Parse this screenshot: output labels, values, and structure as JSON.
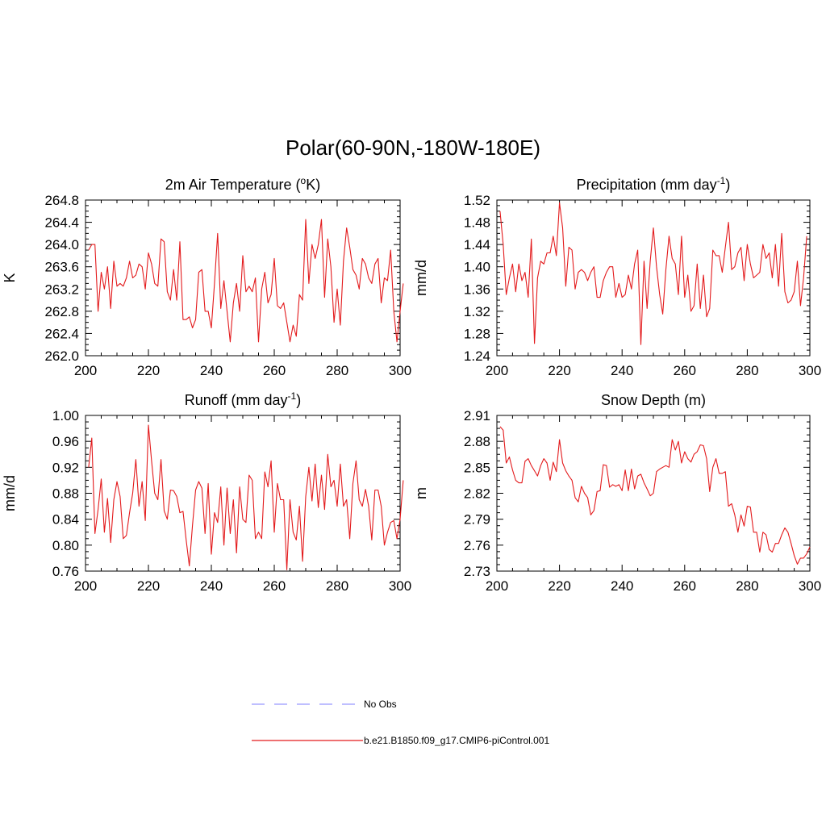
{
  "figure": {
    "title": "Polar(60-90N,-180W-180E)"
  },
  "colors": {
    "model": "#e31a1c",
    "obs": "#9999ff",
    "axis": "#000000"
  },
  "legend": {
    "items": [
      {
        "label": "No Obs",
        "style": "dashed",
        "color": "#9999ff"
      },
      {
        "label": "b.e21.B1850.f09_g17.CMIP6-piControl.001",
        "style": "solid",
        "color": "#e31a1c"
      }
    ]
  },
  "chart_data": [
    {
      "type": "line",
      "title": "2m Air Temperature (",
      "title_sup": "o",
      "title_post": "K)",
      "ylabel": "K",
      "xlim": [
        200,
        300
      ],
      "ylim": [
        262.0,
        264.8
      ],
      "yticks": [
        "262.0",
        "262.4",
        "262.8",
        "263.2",
        "263.6",
        "264.0",
        "264.4",
        "264.8"
      ],
      "xticks": [
        "200",
        "220",
        "240",
        "260",
        "280",
        "300"
      ],
      "x_start": 201,
      "values": [
        263.9,
        264.0,
        264.0,
        262.8,
        263.5,
        263.2,
        263.6,
        262.85,
        263.7,
        263.25,
        263.3,
        263.25,
        263.4,
        263.7,
        263.4,
        263.45,
        263.65,
        263.6,
        263.2,
        263.85,
        263.65,
        263.3,
        263.25,
        264.1,
        264.05,
        263.15,
        263.0,
        263.55,
        263.0,
        264.05,
        262.65,
        262.65,
        262.7,
        262.5,
        262.65,
        263.5,
        263.55,
        262.8,
        262.8,
        262.5,
        263.3,
        264.2,
        262.85,
        263.35,
        262.8,
        262.25,
        262.95,
        263.3,
        262.8,
        263.8,
        263.15,
        263.25,
        263.15,
        263.4,
        262.25,
        263.2,
        263.5,
        262.95,
        263.1,
        263.75,
        262.9,
        262.85,
        262.95,
        262.6,
        262.25,
        262.55,
        262.35,
        263.1,
        263.0,
        264.45,
        263.3,
        264.0,
        263.75,
        264.0,
        264.45,
        263.05,
        264.1,
        263.6,
        262.6,
        263.2,
        262.55,
        263.7,
        264.3,
        263.95,
        263.55,
        263.45,
        263.2,
        263.75,
        263.65,
        263.4,
        263.3,
        263.65,
        263.75,
        262.95,
        263.4,
        263.35,
        263.9,
        262.8,
        262.25,
        262.8,
        263.3
      ]
    },
    {
      "type": "line",
      "title": "Precipitation (mm day",
      "title_sup": "-1",
      "title_post": ")",
      "ylabel": "mm/d",
      "xlim": [
        200,
        300
      ],
      "ylim": [
        1.24,
        1.52
      ],
      "yticks": [
        "1.24",
        "1.28",
        "1.32",
        "1.36",
        "1.40",
        "1.44",
        "1.48",
        "1.52"
      ],
      "xticks": [
        "200",
        "220",
        "240",
        "260",
        "280",
        "300"
      ],
      "x_start": 201,
      "values": [
        1.5,
        1.44,
        1.35,
        1.38,
        1.405,
        1.355,
        1.405,
        1.375,
        1.39,
        1.345,
        1.45,
        1.262,
        1.38,
        1.41,
        1.405,
        1.425,
        1.425,
        1.455,
        1.42,
        1.515,
        1.47,
        1.365,
        1.435,
        1.43,
        1.36,
        1.39,
        1.395,
        1.39,
        1.375,
        1.39,
        1.4,
        1.345,
        1.345,
        1.375,
        1.39,
        1.4,
        1.4,
        1.345,
        1.37,
        1.345,
        1.35,
        1.385,
        1.36,
        1.405,
        1.43,
        1.26,
        1.41,
        1.325,
        1.41,
        1.47,
        1.4,
        1.35,
        1.315,
        1.395,
        1.455,
        1.415,
        1.405,
        1.35,
        1.455,
        1.345,
        1.385,
        1.32,
        1.33,
        1.405,
        1.325,
        1.385,
        1.31,
        1.325,
        1.43,
        1.42,
        1.42,
        1.39,
        1.435,
        1.48,
        1.395,
        1.4,
        1.425,
        1.435,
        1.375,
        1.44,
        1.405,
        1.38,
        1.385,
        1.39,
        1.44,
        1.415,
        1.425,
        1.38,
        1.44,
        1.365,
        1.46,
        1.355,
        1.335,
        1.34,
        1.355,
        1.41,
        1.33,
        1.38,
        1.455
      ]
    },
    {
      "type": "line",
      "title": "Runoff (mm day",
      "title_sup": "-1",
      "title_post": ")",
      "ylabel": "mm/d",
      "xlim": [
        200,
        300
      ],
      "ylim": [
        0.76,
        1.0
      ],
      "yticks": [
        "0.76",
        "0.80",
        "0.84",
        "0.88",
        "0.92",
        "0.96",
        "1.00"
      ],
      "xticks": [
        "200",
        "220",
        "240",
        "260",
        "280",
        "300"
      ],
      "x_start": 201,
      "values": [
        0.92,
        0.965,
        0.818,
        0.855,
        0.902,
        0.82,
        0.872,
        0.804,
        0.87,
        0.898,
        0.875,
        0.81,
        0.815,
        0.85,
        0.88,
        0.932,
        0.86,
        0.898,
        0.838,
        0.985,
        0.93,
        0.88,
        0.87,
        0.932,
        0.853,
        0.84,
        0.885,
        0.884,
        0.875,
        0.85,
        0.852,
        0.808,
        0.768,
        0.83,
        0.885,
        0.898,
        0.888,
        0.818,
        0.895,
        0.786,
        0.85,
        0.835,
        0.89,
        0.8,
        0.888,
        0.818,
        0.87,
        0.788,
        0.89,
        0.84,
        0.835,
        0.908,
        0.9,
        0.81,
        0.82,
        0.81,
        0.913,
        0.89,
        0.93,
        0.82,
        0.895,
        0.87,
        0.87,
        0.762,
        0.87,
        0.82,
        0.808,
        0.86,
        0.775,
        0.875,
        0.92,
        0.868,
        0.925,
        0.858,
        0.908,
        0.855,
        0.94,
        0.89,
        0.9,
        0.86,
        0.925,
        0.86,
        0.87,
        0.81,
        0.895,
        0.93,
        0.87,
        0.86,
        0.886,
        0.86,
        0.808,
        0.885,
        0.885,
        0.86,
        0.8,
        0.82,
        0.835,
        0.838,
        0.81,
        0.84,
        0.9
      ]
    },
    {
      "type": "line",
      "title": "Snow Depth (m)",
      "title_sup": "",
      "title_post": "",
      "ylabel": "m",
      "xlim": [
        200,
        300
      ],
      "ylim": [
        2.73,
        2.91
      ],
      "yticks": [
        "2.73",
        "2.76",
        "2.79",
        "2.82",
        "2.85",
        "2.88",
        "2.91"
      ],
      "xticks": [
        "200",
        "220",
        "240",
        "260",
        "280",
        "300"
      ],
      "x_start": 201,
      "values": [
        2.897,
        2.893,
        2.855,
        2.862,
        2.847,
        2.835,
        2.832,
        2.832,
        2.857,
        2.86,
        2.852,
        2.846,
        2.84,
        2.852,
        2.86,
        2.855,
        2.835,
        2.856,
        2.845,
        2.882,
        2.855,
        2.846,
        2.84,
        2.835,
        2.815,
        2.81,
        2.828,
        2.82,
        2.815,
        2.795,
        2.8,
        2.822,
        2.823,
        2.853,
        2.852,
        2.827,
        2.83,
        2.828,
        2.83,
        2.823,
        2.847,
        2.823,
        2.848,
        2.825,
        2.84,
        2.842,
        2.832,
        2.825,
        2.817,
        2.82,
        2.845,
        2.848,
        2.85,
        2.852,
        2.85,
        2.882,
        2.87,
        2.88,
        2.855,
        2.868,
        2.86,
        2.856,
        2.865,
        2.868,
        2.876,
        2.875,
        2.86,
        2.822,
        2.85,
        2.86,
        2.843,
        2.843,
        2.845,
        2.805,
        2.808,
        2.795,
        2.775,
        2.795,
        2.782,
        2.805,
        2.804,
        2.775,
        2.775,
        2.752,
        2.775,
        2.772,
        2.755,
        2.752,
        2.762,
        2.762,
        2.772,
        2.78,
        2.775,
        2.762,
        2.748,
        2.738,
        2.745,
        2.745,
        2.75,
        2.758
      ]
    }
  ]
}
